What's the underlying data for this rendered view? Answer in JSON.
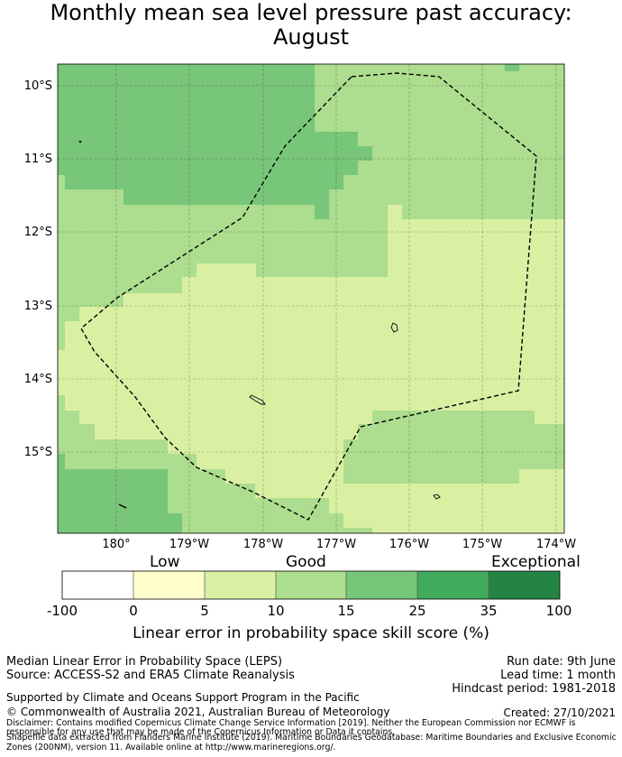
{
  "title": {
    "line1": "Monthly mean sea level pressure past accuracy:",
    "line2": "August"
  },
  "map": {
    "lat_labels": [
      "10°S",
      "11°S",
      "12°S",
      "13°S",
      "14°S",
      "15°S"
    ],
    "lon_labels": [
      "180°",
      "179°W",
      "178°W",
      "177°W",
      "176°W",
      "175°W",
      "174°W"
    ]
  },
  "colorbar": {
    "categories": [
      "Low",
      "Good",
      "Exceptional"
    ],
    "ticks": [
      "-100",
      "0",
      "5",
      "10",
      "15",
      "25",
      "35",
      "100"
    ],
    "colors": [
      "#ffffff",
      "#ffffcc",
      "#d9f0a3",
      "#addd8e",
      "#78c679",
      "#41ab5d",
      "#238443"
    ],
    "label": "Linear error in probability space skill score (%)"
  },
  "info": {
    "method": "Median Linear Error in Probability Space (LEPS)",
    "source": "Source: ACCESS-S2 and ERA5 Climate Reanalysis",
    "run_date": "Run date: 9th June",
    "lead_time": "Lead time: 1 month",
    "hindcast": "Hindcast period: 1981-2018",
    "supported": "Supported by Climate and Oceans Support Program in the Pacific",
    "copyright": "© Commonwealth of Australia 2021, Australian Bureau of Meteorology",
    "created": "Created: 27/10/2021",
    "disclaimer1": "Disclaimer: Contains modified Copernicus Climate Change Service Information [2019]. Neither the European Commission nor ECMWF is",
    "disclaimer2": "responsible for any use that may be made of the Copernicus Information or Data it contains.",
    "shapefile1": "Shapefile data extracted from Flanders Marine Institute (2019). Maritime Boundaries Geodatabase: Maritime Boundaries and Exclusive Economic",
    "shapefile2": "Zones (200NM), version 11. Available online at http://www.marineregions.org/."
  }
}
